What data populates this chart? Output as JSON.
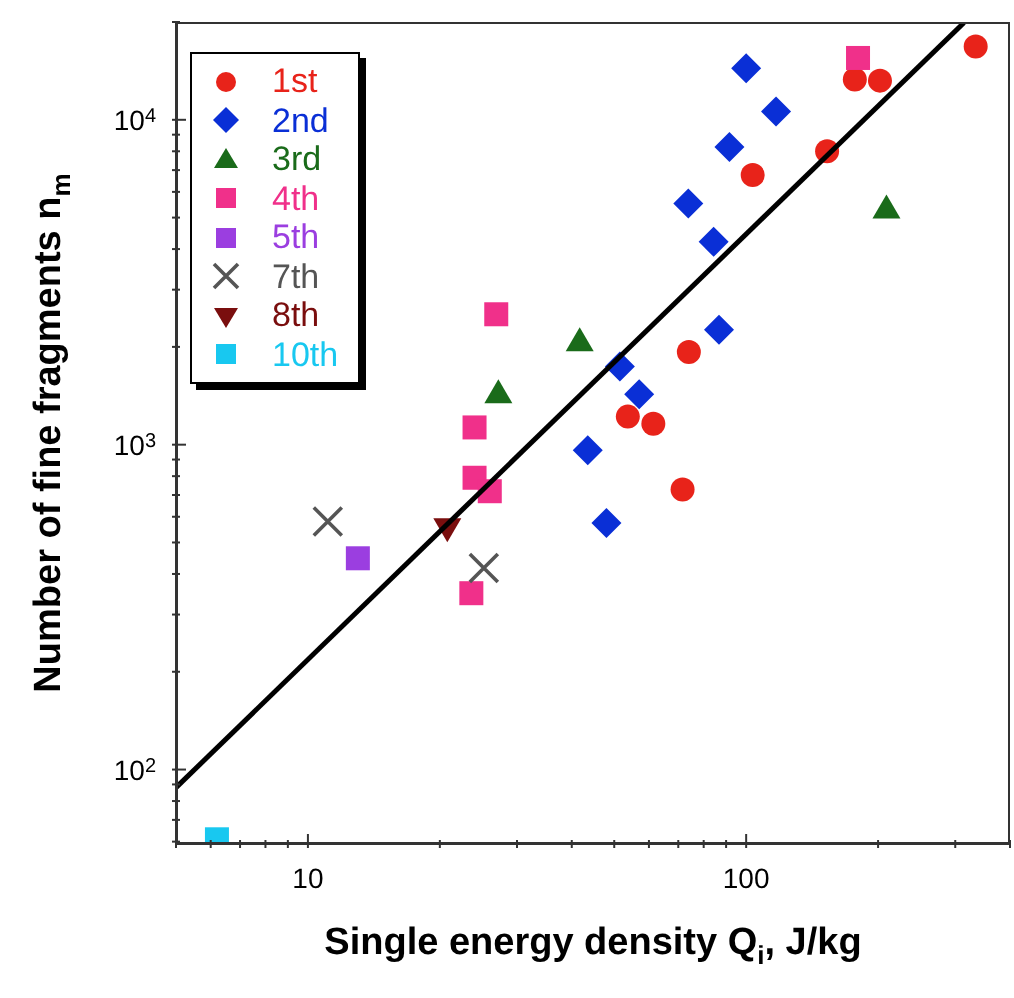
{
  "chart_data": {
    "type": "scatter",
    "xlabel": "Single energy density Q$_{i}$, J/kg",
    "ylabel": "Number of fine fragments n$_{m}$",
    "log": "xy",
    "legend": "top left",
    "xlim": [
      5,
      400
    ],
    "ylim": [
      59,
      20000
    ],
    "xticks": [
      {
        "value": 5,
        "label": null
      },
      {
        "value": 6,
        "label": null
      },
      {
        "value": 7,
        "label": null
      },
      {
        "value": 8,
        "label": null
      },
      {
        "value": 9,
        "label": null
      },
      10,
      {
        "value": 20,
        "label": null
      },
      {
        "value": 30,
        "label": null
      },
      {
        "value": 40,
        "label": null
      },
      {
        "value": 50,
        "label": null
      },
      {
        "value": 60,
        "label": null
      },
      {
        "value": 70,
        "label": null
      },
      {
        "value": 80,
        "label": null
      },
      {
        "value": 90,
        "label": null
      },
      100,
      {
        "value": 200,
        "label": null
      },
      {
        "value": 300,
        "label": null
      },
      {
        "value": 400,
        "label": null
      }
    ],
    "yticks": [
      {
        "value": 60,
        "label": null
      },
      {
        "value": 70,
        "label": null
      },
      {
        "value": 80,
        "label": null
      },
      {
        "value": 90,
        "label": null
      },
      {
        "value": 100,
        "label": "10$^{2}$"
      },
      {
        "value": 200,
        "label": null
      },
      {
        "value": 300,
        "label": null
      },
      {
        "value": 400,
        "label": null
      },
      {
        "value": 500,
        "label": null
      },
      {
        "value": 600,
        "label": null
      },
      {
        "value": 700,
        "label": null
      },
      {
        "value": 800,
        "label": null
      },
      {
        "value": 900,
        "label": null
      },
      {
        "value": 1000,
        "label": "10$^{3}$"
      },
      {
        "value": 2000,
        "label": null
      },
      {
        "value": 3000,
        "label": null
      },
      {
        "value": 4000,
        "label": null
      },
      {
        "value": 5000,
        "label": null
      },
      {
        "value": 6000,
        "label": null
      },
      {
        "value": 7000,
        "label": null
      },
      {
        "value": 8000,
        "label": null
      },
      {
        "value": 9000,
        "label": null
      },
      {
        "value": 10000,
        "label": "10$^{4}$"
      },
      {
        "value": 20000,
        "label": null
      }
    ],
    "series": [
      {
        "name": "1st",
        "color": "#e8231a",
        "marker": "circle",
        "x": [
          334,
          177,
          202,
          153,
          103.5,
          74,
          53.7,
          61.4,
          71.6
        ],
        "values": [
          16800,
          13300,
          13200,
          8000,
          6760,
          1930,
          1220,
          1160,
          728
        ]
      },
      {
        "name": "2nd",
        "color": "#0a2fd6",
        "marker": "diamond",
        "x": [
          100,
          117,
          91.6,
          73.8,
          84.3,
          86.7,
          51.5,
          57,
          43.5,
          48
        ],
        "values": [
          14400,
          10600,
          8240,
          5530,
          4210,
          2260,
          1740,
          1430,
          961,
          574
        ]
      },
      {
        "name": "3rd",
        "color": "#1a6b1a",
        "marker": "triangle",
        "x": [
          209,
          41.7,
          27.2
        ],
        "values": [
          5330,
          2080,
          1440
        ]
      },
      {
        "name": "4th",
        "color": "#f0308a",
        "marker": "square",
        "x": [
          180,
          26.9,
          24,
          24,
          26,
          23.6
        ],
        "values": [
          15500,
          2520,
          1130,
          791,
          719,
          349
        ]
      },
      {
        "name": "5th",
        "color": "#9b3ee0",
        "marker": "square",
        "x": [
          13
        ],
        "values": [
          447
        ]
      },
      {
        "name": "7th",
        "color": "#555555",
        "marker": "cross",
        "x": [
          11.1,
          25.2
        ],
        "values": [
          580,
          417
        ]
      },
      {
        "name": "8th",
        "color": "#7a0e0e",
        "marker": "triangle-down",
        "x": [
          20.8
        ],
        "values": [
          553
        ]
      },
      {
        "name": "10th",
        "color": "#18c8f0",
        "marker": "square",
        "x": [
          6.2
        ],
        "values": [
          61
        ]
      },
      {
        "type": "line",
        "color": "#000000",
        "marker": "none",
        "line_style": "solid",
        "x": [
          5,
          314
        ],
        "values": [
          88,
          19900
        ]
      }
    ]
  }
}
